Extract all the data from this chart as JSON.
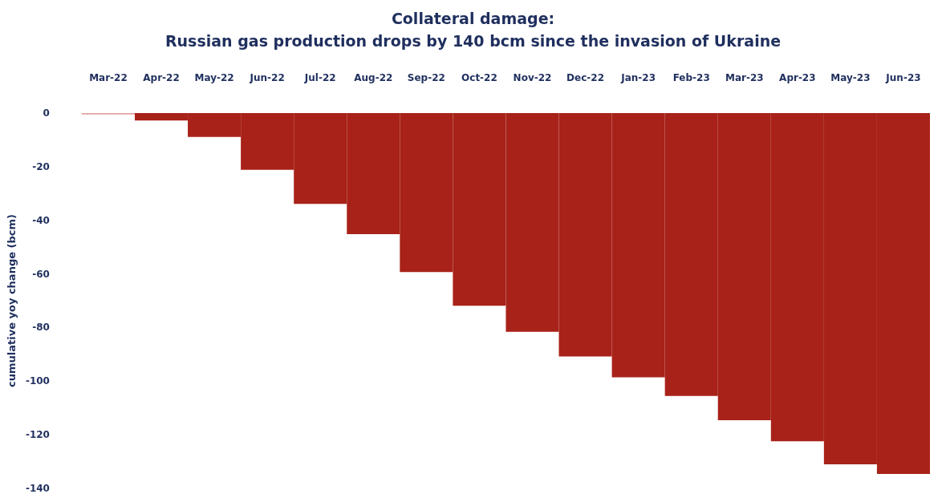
{
  "chart_data": {
    "type": "bar",
    "title": "Collateral damage:\nRussian gas production drops by 140 bcm since the invasion of Ukraine",
    "ylabel": "cumulative yoy change (bcm)",
    "categories": [
      "Mar-22",
      "Apr-22",
      "May-22",
      "Jun-22",
      "Jul-22",
      "Aug-22",
      "Sep-22",
      "Oct-22",
      "Nov-22",
      "Dec-22",
      "Jan-23",
      "Feb-23",
      "Mar-23",
      "Apr-23",
      "May-23",
      "Jun-23"
    ],
    "values": [
      -0.5,
      -2.8,
      -8.9,
      -21.2,
      -33.9,
      -45.2,
      -59.3,
      -71.9,
      -81.6,
      -90.8,
      -98.6,
      -105.5,
      -114.6,
      -122.4,
      -131,
      -134.6
    ],
    "colors": [
      "#e0a4a0",
      "#a82219",
      "#a82219",
      "#a82219",
      "#a82219",
      "#a82219",
      "#a82219",
      "#a82219",
      "#a82219",
      "#a82219",
      "#a82219",
      "#a82219",
      "#a82219",
      "#a82219",
      "#a82219",
      "#a82219"
    ],
    "ylim": [
      -140,
      0
    ],
    "yticks": [
      0,
      -20,
      -40,
      -60,
      -80,
      -100,
      -120,
      -140
    ],
    "grid": false
  }
}
